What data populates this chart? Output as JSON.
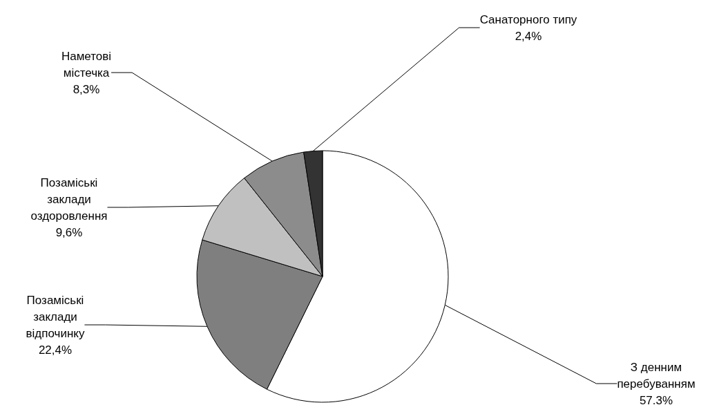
{
  "chart_data": {
    "type": "pie",
    "categories": [
      "З денним\nперебуванням",
      "Позаміські\nзаклади\nвідпочинку",
      "Позаміські\nзаклади\nоздоровлення",
      "Наметові\nмістечка",
      "Санаторного типу"
    ],
    "values": [
      57.3,
      22.4,
      9.6,
      8.3,
      2.4
    ],
    "value_labels": [
      "57.3%",
      "22,4%",
      "9,6%",
      "8,3%",
      "2,4%"
    ],
    "colors": [
      "#ffffff",
      "#7f7f7f",
      "#c0c0c0",
      "#8c8c8c",
      "#333333"
    ],
    "legend": false
  }
}
